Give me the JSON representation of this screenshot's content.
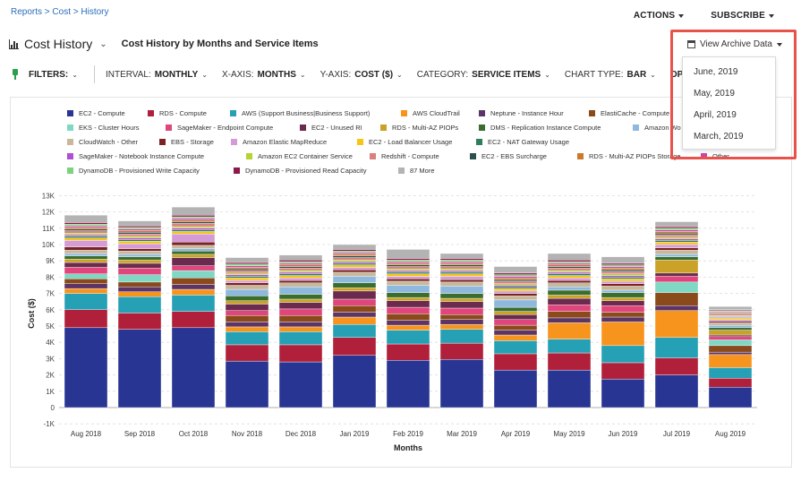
{
  "breadcrumb": {
    "items": [
      "Reports",
      "Cost",
      "History"
    ],
    "separator": ">"
  },
  "header": {
    "actions_label": "ACTIONS",
    "subscribe_label": "SUBSCRIBE"
  },
  "title": {
    "page_title": "Cost History",
    "subtitle": "Cost History by Months and Service Items"
  },
  "filters": {
    "filters_label": "FILTERS:",
    "interval": {
      "label": "INTERVAL:",
      "value": "MONTHLY"
    },
    "xaxis": {
      "label": "X-AXIS:",
      "value": "MONTHS"
    },
    "yaxis": {
      "label": "Y-AXIS:",
      "value": "COST ($)"
    },
    "category": {
      "label": "CATEGORY:",
      "value": "SERVICE ITEMS"
    },
    "charttype": {
      "label": "CHART TYPE:",
      "value": "BAR"
    },
    "options_label": "OPTIONS"
  },
  "archive": {
    "button_label": "View Archive Data",
    "items": [
      "June, 2019",
      "May, 2019",
      "April, 2019",
      "March, 2019"
    ]
  },
  "legend": [
    {
      "name": "EC2 - Compute",
      "color": "#283593"
    },
    {
      "name": "RDS - Compute",
      "color": "#b0203a"
    },
    {
      "name": "AWS (Support Business|Business Support)",
      "color": "#26a0b5"
    },
    {
      "name": "AWS CloudTrail",
      "color": "#f7941d"
    },
    {
      "name": "Neptune - Instance Hour",
      "color": "#5c3566"
    },
    {
      "name": "ElastiCache - Compute",
      "color": "#8b4a1c"
    },
    {
      "name": "EKS - Cluster Hours",
      "color": "#7fd8c4"
    },
    {
      "name": "SageMaker - Endpoint Compute",
      "color": "#e0457b"
    },
    {
      "name": "EC2 - Unused RI",
      "color": "#6b2b4f"
    },
    {
      "name": "RDS - Multi-AZ PIOPs",
      "color": "#c9a227"
    },
    {
      "name": "DMS - Replication Instance Compute",
      "color": "#3b6e2e"
    },
    {
      "name": "Amazon Wo",
      "color": "#8fb8de"
    },
    {
      "name": "CloudWatch - Other",
      "color": "#c8b89a"
    },
    {
      "name": "EBS - Storage",
      "color": "#7a2323"
    },
    {
      "name": "Amazon Elastic MapReduce",
      "color": "#d49bd6"
    },
    {
      "name": "EC2 - Load Balancer Usage",
      "color": "#f5c518"
    },
    {
      "name": "EC2 - NAT Gateway Usage",
      "color": "#2e7d5b"
    },
    {
      "name": "SageMaker - Notebook Instance Compute",
      "color": "#b04fd4"
    },
    {
      "name": "Amazon EC2 Container Service",
      "color": "#b5d334"
    },
    {
      "name": "Redshift - Compute",
      "color": "#d98080"
    },
    {
      "name": "EC2 - EBS Surcharge",
      "color": "#2f4f4f"
    },
    {
      "name": "RDS - Multi-AZ PIOPs Storage",
      "color": "#cc7a29"
    },
    {
      "name": "Other",
      "color": "#cc44aa"
    },
    {
      "name": "DynamoDB - Provisioned Write Capacity",
      "color": "#7ed17e"
    },
    {
      "name": "DynamoDB - Provisioned Read Capacity",
      "color": "#8b1a4a"
    },
    {
      "name": "87 More",
      "color": "#b3b3b3"
    }
  ],
  "chart_data": {
    "type": "bar",
    "stacked": true,
    "xlabel": "Months",
    "ylabel": "Cost ($)",
    "ylim": [
      -1000,
      13000
    ],
    "yticks": [
      "-1K",
      "0",
      "1K",
      "2K",
      "3K",
      "4K",
      "5K",
      "6K",
      "7K",
      "8K",
      "9K",
      "10K",
      "11K",
      "12K",
      "13K"
    ],
    "categories": [
      "Aug 2018",
      "Sep 2018",
      "Oct 2018",
      "Nov 2018",
      "Dec 2018",
      "Jan 2019",
      "Feb 2019",
      "Mar 2019",
      "Apr 2019",
      "May 2019",
      "Jun 2019",
      "Jul 2019",
      "Aug 2019"
    ],
    "series": [
      {
        "name": "EC2 - Compute",
        "values": [
          4900,
          4800,
          4900,
          2850,
          2800,
          3200,
          2900,
          2950,
          2300,
          2300,
          1750,
          2000,
          1250
        ]
      },
      {
        "name": "RDS - Compute",
        "values": [
          1100,
          1000,
          1000,
          1000,
          1050,
          1100,
          1000,
          1000,
          1000,
          1050,
          1000,
          1050,
          550
        ]
      },
      {
        "name": "AWS (Support Business|Business Support)",
        "values": [
          1000,
          1000,
          1000,
          800,
          800,
          800,
          850,
          850,
          800,
          850,
          1050,
          1250,
          650
        ]
      },
      {
        "name": "AWS CloudTrail",
        "values": [
          300,
          300,
          350,
          300,
          300,
          450,
          300,
          300,
          350,
          1000,
          1450,
          1650,
          800
        ]
      },
      {
        "name": "Neptune - Instance Hour",
        "values": [
          300,
          300,
          300,
          300,
          300,
          300,
          300,
          300,
          300,
          300,
          300,
          300,
          150
        ]
      },
      {
        "name": "ElastiCache - Compute",
        "values": [
          300,
          300,
          400,
          400,
          400,
          400,
          400,
          300,
          300,
          400,
          300,
          800,
          400
        ]
      },
      {
        "name": "EKS - Cluster Hours",
        "values": [
          300,
          450,
          450,
          0,
          0,
          0,
          0,
          0,
          0,
          0,
          0,
          650,
          350
        ]
      },
      {
        "name": "SageMaker - Endpoint Compute",
        "values": [
          400,
          400,
          300,
          300,
          400,
          400,
          400,
          400,
          350,
          400,
          400,
          350,
          200
        ]
      },
      {
        "name": "EC2 - Unused RI",
        "values": [
          300,
          300,
          500,
          400,
          400,
          500,
          400,
          400,
          300,
          400,
          300,
          200,
          100
        ]
      },
      {
        "name": "RDS - Multi-AZ PIOPs",
        "values": [
          200,
          200,
          200,
          200,
          200,
          200,
          200,
          200,
          200,
          200,
          200,
          800,
          300
        ]
      },
      {
        "name": "DMS - Replication Instance Compute",
        "values": [
          200,
          200,
          200,
          300,
          300,
          300,
          300,
          300,
          250,
          300,
          300,
          200,
          150
        ]
      },
      {
        "name": "Amazon Wo",
        "values": [
          150,
          150,
          150,
          400,
          450,
          400,
          450,
          450,
          450,
          200,
          150,
          150,
          150
        ]
      },
      {
        "name": "CloudWatch - Other",
        "values": [
          200,
          200,
          200,
          250,
          250,
          250,
          250,
          250,
          250,
          250,
          250,
          250,
          150
        ]
      },
      {
        "name": "EBS - Storage",
        "values": [
          200,
          150,
          200,
          150,
          150,
          150,
          150,
          150,
          150,
          150,
          150,
          150,
          100
        ]
      },
      {
        "name": "Amazon Elastic MapReduce",
        "values": [
          400,
          300,
          500,
          150,
          150,
          150,
          150,
          200,
          150,
          150,
          150,
          200,
          100
        ]
      },
      {
        "name": "EC2 - Load Balancer Usage",
        "values": [
          150,
          150,
          150,
          150,
          150,
          150,
          150,
          150,
          150,
          150,
          150,
          150,
          100
        ]
      },
      {
        "name": "EC2 - NAT Gateway Usage",
        "values": [
          100,
          100,
          100,
          100,
          100,
          100,
          100,
          100,
          100,
          100,
          100,
          100,
          50
        ]
      },
      {
        "name": "SageMaker - Notebook Instance Compute",
        "values": [
          100,
          100,
          100,
          100,
          100,
          100,
          100,
          100,
          100,
          100,
          100,
          100,
          50
        ]
      },
      {
        "name": "Amazon EC2 Container Service",
        "values": [
          100,
          100,
          100,
          100,
          100,
          100,
          100,
          100,
          100,
          100,
          100,
          100,
          50
        ]
      },
      {
        "name": "Redshift - Compute",
        "values": [
          150,
          150,
          200,
          150,
          150,
          150,
          150,
          150,
          150,
          150,
          150,
          150,
          100
        ]
      },
      {
        "name": "EC2 - EBS Surcharge",
        "values": [
          100,
          100,
          100,
          100,
          100,
          100,
          100,
          100,
          100,
          100,
          100,
          100,
          50
        ]
      },
      {
        "name": "RDS - Multi-AZ PIOPs Storage",
        "values": [
          100,
          100,
          100,
          100,
          100,
          100,
          100,
          100,
          100,
          100,
          100,
          100,
          50
        ]
      },
      {
        "name": "Other",
        "values": [
          100,
          100,
          100,
          100,
          100,
          100,
          100,
          100,
          100,
          100,
          100,
          100,
          50
        ]
      },
      {
        "name": "DynamoDB - Provisioned Write Capacity",
        "values": [
          100,
          100,
          100,
          100,
          100,
          100,
          100,
          100,
          100,
          100,
          100,
          100,
          50
        ]
      },
      {
        "name": "DynamoDB - Provisioned Read Capacity",
        "values": [
          100,
          100,
          100,
          100,
          100,
          100,
          100,
          100,
          100,
          100,
          100,
          100,
          50
        ]
      },
      {
        "name": "87 More",
        "values": [
          450,
          300,
          500,
          300,
          300,
          300,
          550,
          300,
          400,
          400,
          400,
          300,
          200
        ]
      }
    ]
  }
}
